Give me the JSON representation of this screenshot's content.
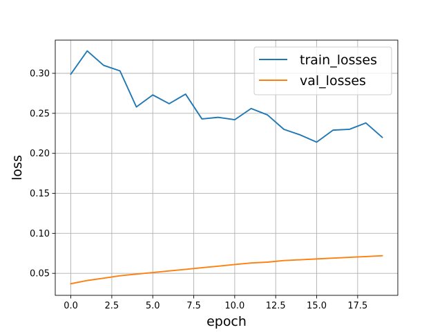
{
  "chart_data": {
    "type": "line",
    "title": "",
    "xlabel": "epoch",
    "ylabel": "loss",
    "xlim": [
      -0.95,
      19.95
    ],
    "ylim": [
      0.0225,
      0.3415
    ],
    "grid": true,
    "legend_position": "top-right",
    "x_ticks": [
      0.0,
      2.5,
      5.0,
      7.5,
      10.0,
      12.5,
      15.0,
      17.5
    ],
    "x_tick_labels": [
      "0.0",
      "2.5",
      "5.0",
      "7.5",
      "10.0",
      "12.5",
      "15.0",
      "17.5"
    ],
    "y_ticks": [
      0.05,
      0.1,
      0.15,
      0.2,
      0.25,
      0.3
    ],
    "y_tick_labels": [
      "0.05",
      "0.10",
      "0.15",
      "0.20",
      "0.25",
      "0.30"
    ],
    "x": [
      0,
      1,
      2,
      3,
      4,
      5,
      6,
      7,
      8,
      9,
      10,
      11,
      12,
      13,
      14,
      15,
      16,
      17,
      18,
      19
    ],
    "series": [
      {
        "name": "train_losses",
        "color": "#1f77b4",
        "values": [
          0.299,
          0.328,
          0.31,
          0.303,
          0.258,
          0.273,
          0.262,
          0.274,
          0.243,
          0.245,
          0.242,
          0.256,
          0.248,
          0.23,
          0.223,
          0.214,
          0.229,
          0.23,
          0.238,
          0.22
        ]
      },
      {
        "name": "val_losses",
        "color": "#ff7f0e",
        "values": [
          0.037,
          0.041,
          0.044,
          0.047,
          0.049,
          0.051,
          0.053,
          0.055,
          0.057,
          0.059,
          0.061,
          0.063,
          0.064,
          0.066,
          0.067,
          0.068,
          0.069,
          0.07,
          0.071,
          0.072
        ]
      }
    ]
  }
}
